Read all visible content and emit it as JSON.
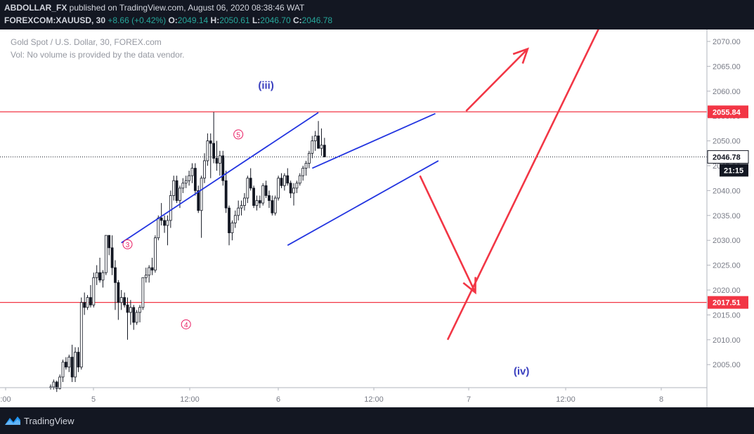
{
  "header": {
    "author": "ABDOLLAR_FX",
    "published_text": " published on TradingView.com, August 06, 2020 08:38:46 WAT",
    "symbol": "FOREXCOM:XAUUSD, 30",
    "change": "+8.66 (+0.42%)",
    "o_label": "O:",
    "o_value": "2049.14",
    "h_label": "H:",
    "h_value": "2050.61",
    "l_label": "L:",
    "l_value": "2046.70",
    "c_label": "C:",
    "c_value": "2046.78"
  },
  "legend": {
    "title": "Gold Spot / U.S. Dollar, 30, FOREX.com",
    "volume_note": "Vol: No volume is provided by the data vendor."
  },
  "footer": {
    "brand": "TradingView"
  },
  "colors": {
    "up": "#26a69a",
    "line_red": "#f23645",
    "trend_blue": "#2335e0",
    "wave_pink": "#e91e63",
    "wave_label": "#3a3fbf"
  },
  "chart_data": {
    "type": "candlestick",
    "y_axis": {
      "min": 2000,
      "max": 2074,
      "ticks": [
        2005,
        2010,
        2015,
        2020,
        2025,
        2030,
        2035,
        2040,
        2045,
        2050,
        2055,
        2060,
        2065,
        2070
      ]
    },
    "time_ticks": [
      ":00",
      "5",
      "12:00",
      "6",
      "12:00",
      "7",
      "12:00",
      "8"
    ],
    "last_price": {
      "value": 2046.78,
      "label": "2046.78",
      "countdown": "21:15"
    },
    "horizontal_lines": [
      {
        "value": 2055.84,
        "label": "2055.84"
      },
      {
        "value": 2017.51,
        "label": "2017.51"
      }
    ],
    "wave_labels": [
      {
        "text": "(iii)",
        "bar": 70,
        "price": 2060.5
      },
      {
        "text": "(iv)",
        "bar": 153,
        "price": 2003
      },
      {
        "text": "3",
        "bar": 25,
        "price": 2029.2
      },
      {
        "text": "4",
        "bar": 44,
        "price": 2013.1
      },
      {
        "text": "5",
        "bar": 61,
        "price": 2051.3
      }
    ],
    "trendlines": [
      {
        "p1": [
          23,
          2029.5
        ],
        "p2": [
          87,
          2055.7
        ]
      },
      {
        "p1": [
          85,
          2044.5
        ],
        "p2": [
          125,
          2055.5
        ]
      },
      {
        "p1": [
          77,
          2029.0
        ],
        "p2": [
          126,
          2046.0
        ]
      }
    ],
    "arrows": [
      {
        "from": [
          135,
          2056.0
        ],
        "to": [
          155,
          2068.5
        ],
        "head": true
      },
      {
        "from": [
          120,
          2043.0
        ],
        "to": [
          138,
          2019.5
        ],
        "head": true
      },
      {
        "from": [
          129,
          2010.0
        ],
        "to": [
          180,
          2075.0
        ],
        "head": false
      }
    ],
    "candles": [
      [
        2000.5,
        2001,
        2000,
        2000.5
      ],
      [
        2000.5,
        2002,
        2000,
        2001.5
      ],
      [
        2001.5,
        2001.8,
        1999.5,
        2000.2
      ],
      [
        2000.2,
        2003,
        2000,
        2002.5
      ],
      [
        2002.5,
        2006,
        2001.5,
        2005.5
      ],
      [
        2005.5,
        2006.5,
        2004,
        2004.5
      ],
      [
        2004.5,
        2007,
        2003.5,
        2006.5
      ],
      [
        2006.5,
        2009,
        2001.5,
        2002.5
      ],
      [
        2002.5,
        2008.5,
        2001.5,
        2007.5
      ],
      [
        2007.5,
        2008.5,
        2003.5,
        2004.5
      ],
      [
        2004.5,
        2018.5,
        2004,
        2017.5
      ],
      [
        2017.5,
        2019.5,
        2015,
        2016.5
      ],
      [
        2016.5,
        2019,
        2016,
        2018.5
      ],
      [
        2018.5,
        2021,
        2016.5,
        2017
      ],
      [
        2017,
        2023.5,
        2016.5,
        2022.5
      ],
      [
        2022.5,
        2025,
        2021,
        2023.5
      ],
      [
        2023.5,
        2026.5,
        2021.5,
        2022
      ],
      [
        2022,
        2024,
        2020.5,
        2023.5
      ],
      [
        2023.5,
        2031,
        2023,
        2031
      ],
      [
        2031,
        2031,
        2027,
        2028.5
      ],
      [
        2028.5,
        2031,
        2023,
        2024.5
      ],
      [
        2024.5,
        2026,
        2016,
        2021.5
      ],
      [
        2021.5,
        2022,
        2014,
        2017.5
      ],
      [
        2017.5,
        2020,
        2016,
        2018.5
      ],
      [
        2018.5,
        2019.5,
        2016.5,
        2017
      ],
      [
        2017,
        2018.5,
        2010,
        2015.5
      ],
      [
        2015.5,
        2018,
        2013,
        2016.5
      ],
      [
        2016.5,
        2017,
        2012,
        2013.5
      ],
      [
        2013.5,
        2016,
        2013,
        2015.5
      ],
      [
        2015.5,
        2017,
        2013.5,
        2016.5
      ],
      [
        2016.5,
        2022.5,
        2016,
        2022.5
      ],
      [
        2022.5,
        2024.5,
        2021.5,
        2023
      ],
      [
        2023,
        2025,
        2021.5,
        2024.5
      ],
      [
        2024.5,
        2026.5,
        2023,
        2024
      ],
      [
        2024,
        2031,
        2023.5,
        2030.5
      ],
      [
        2030.5,
        2035,
        2030,
        2034.5
      ],
      [
        2034.5,
        2037.5,
        2033,
        2034
      ],
      [
        2034,
        2035,
        2031.5,
        2033
      ],
      [
        2033,
        2035,
        2029,
        2034
      ],
      [
        2034,
        2040,
        2032.5,
        2039
      ],
      [
        2039,
        2043,
        2038,
        2042
      ],
      [
        2042,
        2043,
        2037.5,
        2038
      ],
      [
        2038,
        2041,
        2036.5,
        2040.5
      ],
      [
        2040.5,
        2042.5,
        2039.5,
        2041.5
      ],
      [
        2041.5,
        2043,
        2040.5,
        2042
      ],
      [
        2042,
        2044,
        2041,
        2043
      ],
      [
        2043,
        2045.5,
        2041.5,
        2044.5
      ],
      [
        2044.5,
        2045.5,
        2039,
        2040
      ],
      [
        2040,
        2041,
        2035.5,
        2036
      ],
      [
        2036,
        2043,
        2030.5,
        2042.5
      ],
      [
        2042.5,
        2047.5,
        2041.5,
        2046
      ],
      [
        2046,
        2051.5,
        2045,
        2050
      ],
      [
        2050,
        2051.5,
        2042.5,
        2049.5
      ],
      [
        2049.5,
        2055.8,
        2045.5,
        2046.5
      ],
      [
        2046.5,
        2050,
        2044,
        2045.5
      ],
      [
        2045.5,
        2048,
        2043,
        2047
      ],
      [
        2047,
        2048,
        2041,
        2042
      ],
      [
        2042,
        2044,
        2035.5,
        2036.5
      ],
      [
        2036.5,
        2037,
        2029,
        2031.5
      ],
      [
        2031.5,
        2034,
        2030,
        2033.5
      ],
      [
        2033.5,
        2036,
        2032.5,
        2035
      ],
      [
        2035,
        2038,
        2034,
        2036.5
      ],
      [
        2036.5,
        2038,
        2035,
        2037
      ],
      [
        2037,
        2039.5,
        2036,
        2038.5
      ],
      [
        2038.5,
        2043,
        2037.5,
        2042.5
      ],
      [
        2042.5,
        2044.5,
        2040,
        2040.5
      ],
      [
        2040.5,
        2041,
        2036.5,
        2037
      ],
      [
        2037,
        2039,
        2036,
        2038
      ],
      [
        2038,
        2039,
        2036.5,
        2037.5
      ],
      [
        2037.5,
        2041.5,
        2037,
        2041
      ],
      [
        2041,
        2042,
        2038.5,
        2039
      ],
      [
        2039,
        2040,
        2036.5,
        2038
      ],
      [
        2038,
        2039,
        2035,
        2035.5
      ],
      [
        2035.5,
        2039,
        2035,
        2038.5
      ],
      [
        2038.5,
        2043,
        2038,
        2042.5
      ],
      [
        2042.5,
        2043.5,
        2040.5,
        2041
      ],
      [
        2041,
        2043.5,
        2040,
        2043
      ],
      [
        2043,
        2044.5,
        2041,
        2041.5
      ],
      [
        2041.5,
        2042,
        2038.5,
        2039.5
      ],
      [
        2039.5,
        2041.5,
        2037,
        2040.5
      ],
      [
        2040.5,
        2042,
        2039.5,
        2041.5
      ],
      [
        2041.5,
        2043.5,
        2041,
        2043
      ],
      [
        2043,
        2045,
        2042,
        2044.5
      ],
      [
        2044.5,
        2046,
        2043,
        2045.5
      ],
      [
        2045.5,
        2048,
        2044.5,
        2047.5
      ],
      [
        2047.5,
        2051,
        2046.5,
        2050
      ],
      [
        2050,
        2052,
        2048,
        2051
      ],
      [
        2051,
        2054,
        2048.5,
        2048.5
      ],
      [
        2048.5,
        2052.5,
        2047,
        2049.14
      ],
      [
        2049.14,
        2050.61,
        2046.7,
        2046.78
      ]
    ]
  }
}
